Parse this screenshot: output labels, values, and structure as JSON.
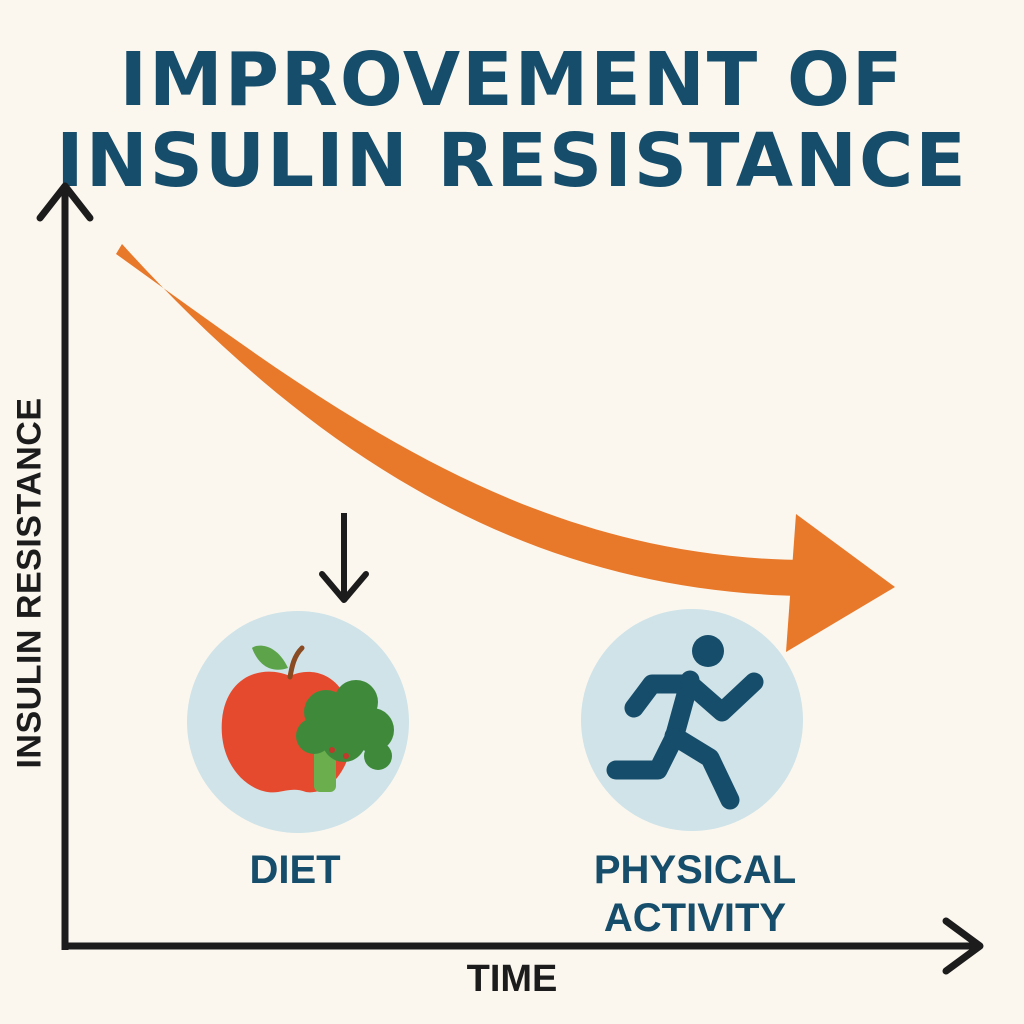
{
  "title": {
    "line1": "IMPROVEMENT OF",
    "line2": "INSULIN RESISTANCE"
  },
  "axes": {
    "ylabel": "INSULIN RESISTANCE",
    "xlabel": "TIME"
  },
  "interventions": [
    {
      "label": "DIET",
      "icon": "apple-broccoli-icon"
    },
    {
      "label": "PHYSICAL ACTIVITY",
      "icon": "running-person-icon"
    }
  ],
  "colors": {
    "title": "#164d6b",
    "trend_arrow": "#e8782a",
    "icon_circle": "#cfe3e8",
    "axis": "#1c1c1c"
  }
}
